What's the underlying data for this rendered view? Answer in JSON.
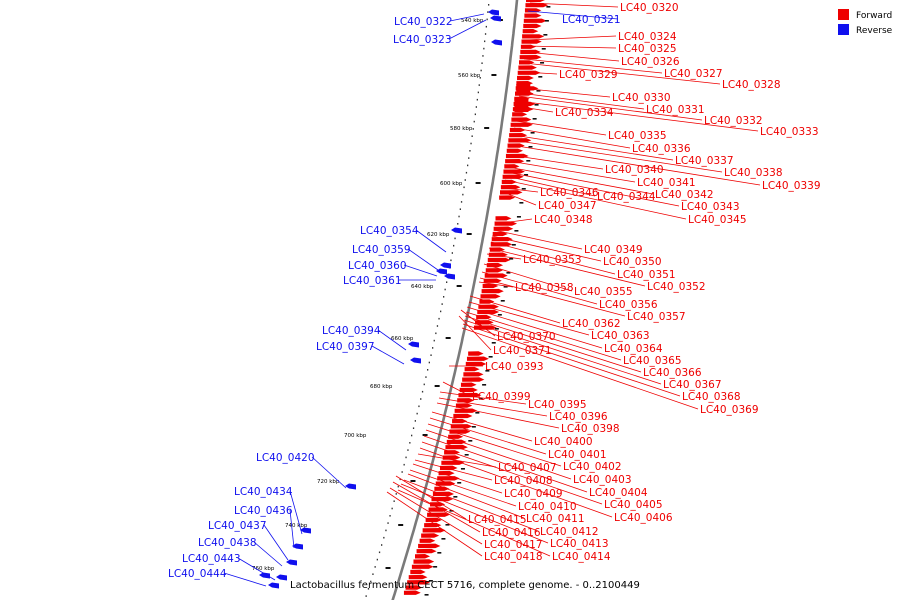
{
  "colors": {
    "forward": "#ee0000",
    "reverse": "#1010ee",
    "backbone": "#7a7a7a"
  },
  "legend": [
    {
      "label": "Forward",
      "color": "#ee0000"
    },
    {
      "label": "Reverse",
      "color": "#1010ee"
    }
  ],
  "caption": "Lactobacillus fermentum CECT 5716, complete genome. - 0..2100449",
  "ticks": [
    "540 kbp",
    "560 kbp",
    "580 kbp",
    "600 kbp",
    "620 kbp",
    "640 kbp",
    "660 kbp",
    "680 kbp",
    "700 kbp",
    "720 kbp",
    "740 kbp",
    "760 kbp"
  ],
  "forward_labels": [
    "LC40_0320",
    "LC40_0324",
    "LC40_0325",
    "LC40_0326",
    "LC40_0327",
    "LC40_0328",
    "LC40_0329",
    "LC40_0330",
    "LC40_0331",
    "LC40_0332",
    "LC40_0333",
    "LC40_0334",
    "LC40_0335",
    "LC40_0336",
    "LC40_0337",
    "LC40_0338",
    "LC40_0339",
    "LC40_0340",
    "LC40_0341",
    "LC40_0342",
    "LC40_0343",
    "LC40_0344",
    "LC40_0345",
    "LC40_0346",
    "LC40_0347",
    "LC40_0348",
    "LC40_0349",
    "LC40_0350",
    "LC40_0351",
    "LC40_0352",
    "LC40_0353",
    "LC40_0355",
    "LC40_0356",
    "LC40_0357",
    "LC40_0358",
    "LC40_0362",
    "LC40_0363",
    "LC40_0364",
    "LC40_0365",
    "LC40_0366",
    "LC40_0367",
    "LC40_0368",
    "LC40_0369",
    "LC40_0370",
    "LC40_0371",
    "LC40_0393",
    "LC40_0395",
    "LC40_0396",
    "LC40_0398",
    "LC40_0399",
    "LC40_0400",
    "LC40_0401",
    "LC40_0402",
    "LC40_0403",
    "LC40_0404",
    "LC40_0405",
    "LC40_0406",
    "LC40_0407",
    "LC40_0408",
    "LC40_0409",
    "LC40_0410",
    "LC40_0411",
    "LC40_0412",
    "LC40_0413",
    "LC40_0414",
    "LC40_0415",
    "LC40_0416",
    "LC40_0417",
    "LC40_0418"
  ],
  "reverse_labels": [
    "LC40_0321",
    "LC40_0322",
    "LC40_0323",
    "LC40_0354",
    "LC40_0359",
    "LC40_0360",
    "LC40_0361",
    "LC40_0394",
    "LC40_0397",
    "LC40_0420",
    "LC40_0434",
    "LC40_0436",
    "LC40_0437",
    "LC40_0438",
    "LC40_0443",
    "LC40_0444"
  ]
}
